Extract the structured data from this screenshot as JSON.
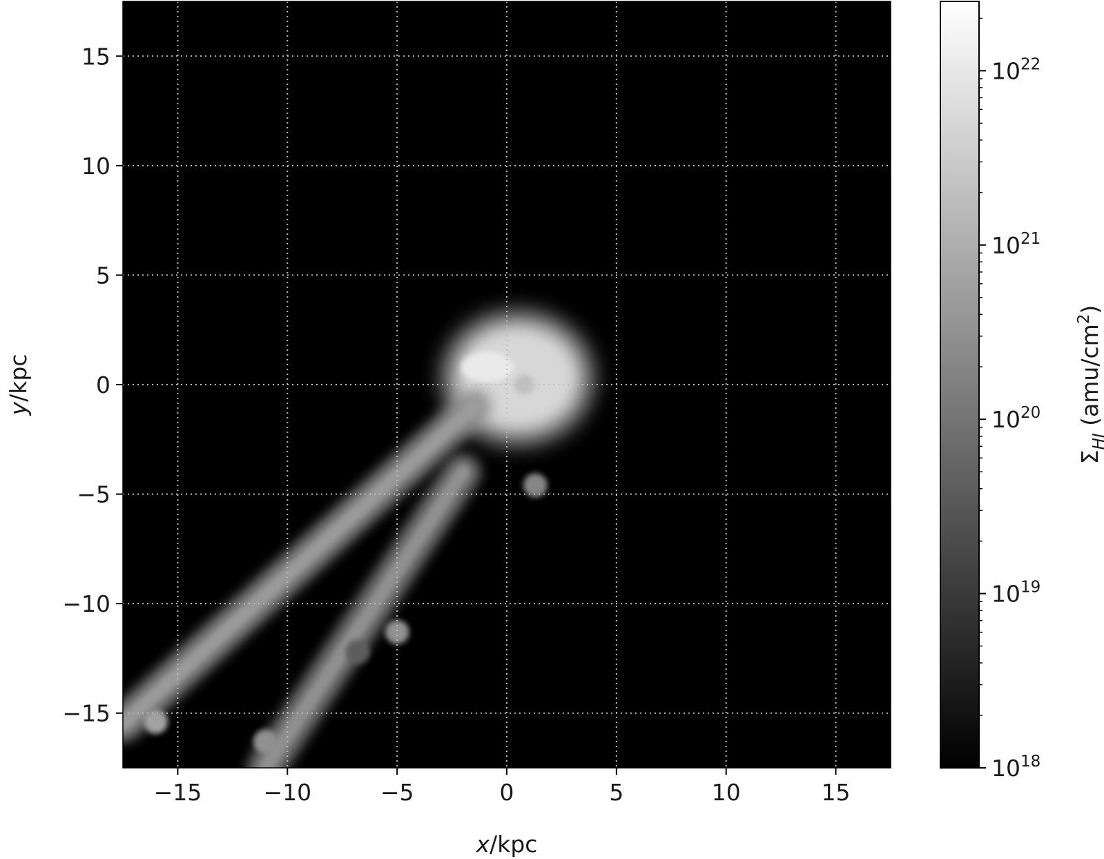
{
  "chart_data": {
    "type": "heatmap",
    "title": "",
    "xlabel": {
      "var": "x",
      "unit": "/kpc"
    },
    "ylabel": {
      "var": "y",
      "unit": "/kpc"
    },
    "xlim": [
      -17.5,
      17.5
    ],
    "ylim": [
      -17.5,
      17.5
    ],
    "xticks": [
      -15,
      -10,
      -5,
      0,
      5,
      10,
      15
    ],
    "yticks": [
      -15,
      -10,
      -5,
      0,
      5,
      10,
      15
    ],
    "xtick_labels": [
      "−15",
      "−10",
      "−5",
      "0",
      "5",
      "10",
      "15"
    ],
    "ytick_labels": [
      "−15",
      "−10",
      "−5",
      "0",
      "5",
      "10",
      "15"
    ],
    "grid": true,
    "grid_style": "dotted",
    "colormap": "greys (black to white)",
    "background_color": "#000000",
    "colorbar": {
      "scale": "log",
      "range": [
        1e+18,
        2.5e+22
      ],
      "ticks": [
        1e+18,
        1e+19,
        1e+20,
        1e+21,
        1e+22
      ],
      "tick_labels": [
        {
          "base": "10",
          "exp": "18"
        },
        {
          "base": "10",
          "exp": "19"
        },
        {
          "base": "10",
          "exp": "20"
        },
        {
          "base": "10",
          "exp": "21"
        },
        {
          "base": "10",
          "exp": "22"
        }
      ],
      "label": {
        "symbol": "Σ",
        "subscript": "HI",
        "unit_prefix": " (amu/cm",
        "unit_exp": "2",
        "unit_suffix": ")"
      }
    },
    "features": [
      {
        "name": "disk",
        "x": 0.5,
        "y": 0.3,
        "log_sigma": 21.8
      },
      {
        "name": "tail-upper-strand",
        "from": [
          -1.5,
          -1
        ],
        "to": [
          -17.5,
          -15.5
        ],
        "log_sigma": 20.5
      },
      {
        "name": "tail-lower-strand",
        "from": [
          -2,
          -4
        ],
        "to": [
          -11,
          -17.5
        ],
        "log_sigma": 20.3
      },
      {
        "name": "cloud",
        "x": 1.3,
        "y": -4.6,
        "log_sigma": 20.3
      },
      {
        "name": "cloud",
        "x": -5,
        "y": -11.3,
        "log_sigma": 20.5
      },
      {
        "name": "cloud",
        "x": -6.8,
        "y": -12.2,
        "log_sigma": 19.6
      },
      {
        "name": "cloud",
        "x": -16,
        "y": -15.4,
        "log_sigma": 20.8
      },
      {
        "name": "cloud",
        "x": -11,
        "y": -16.3,
        "log_sigma": 20.5
      }
    ]
  }
}
